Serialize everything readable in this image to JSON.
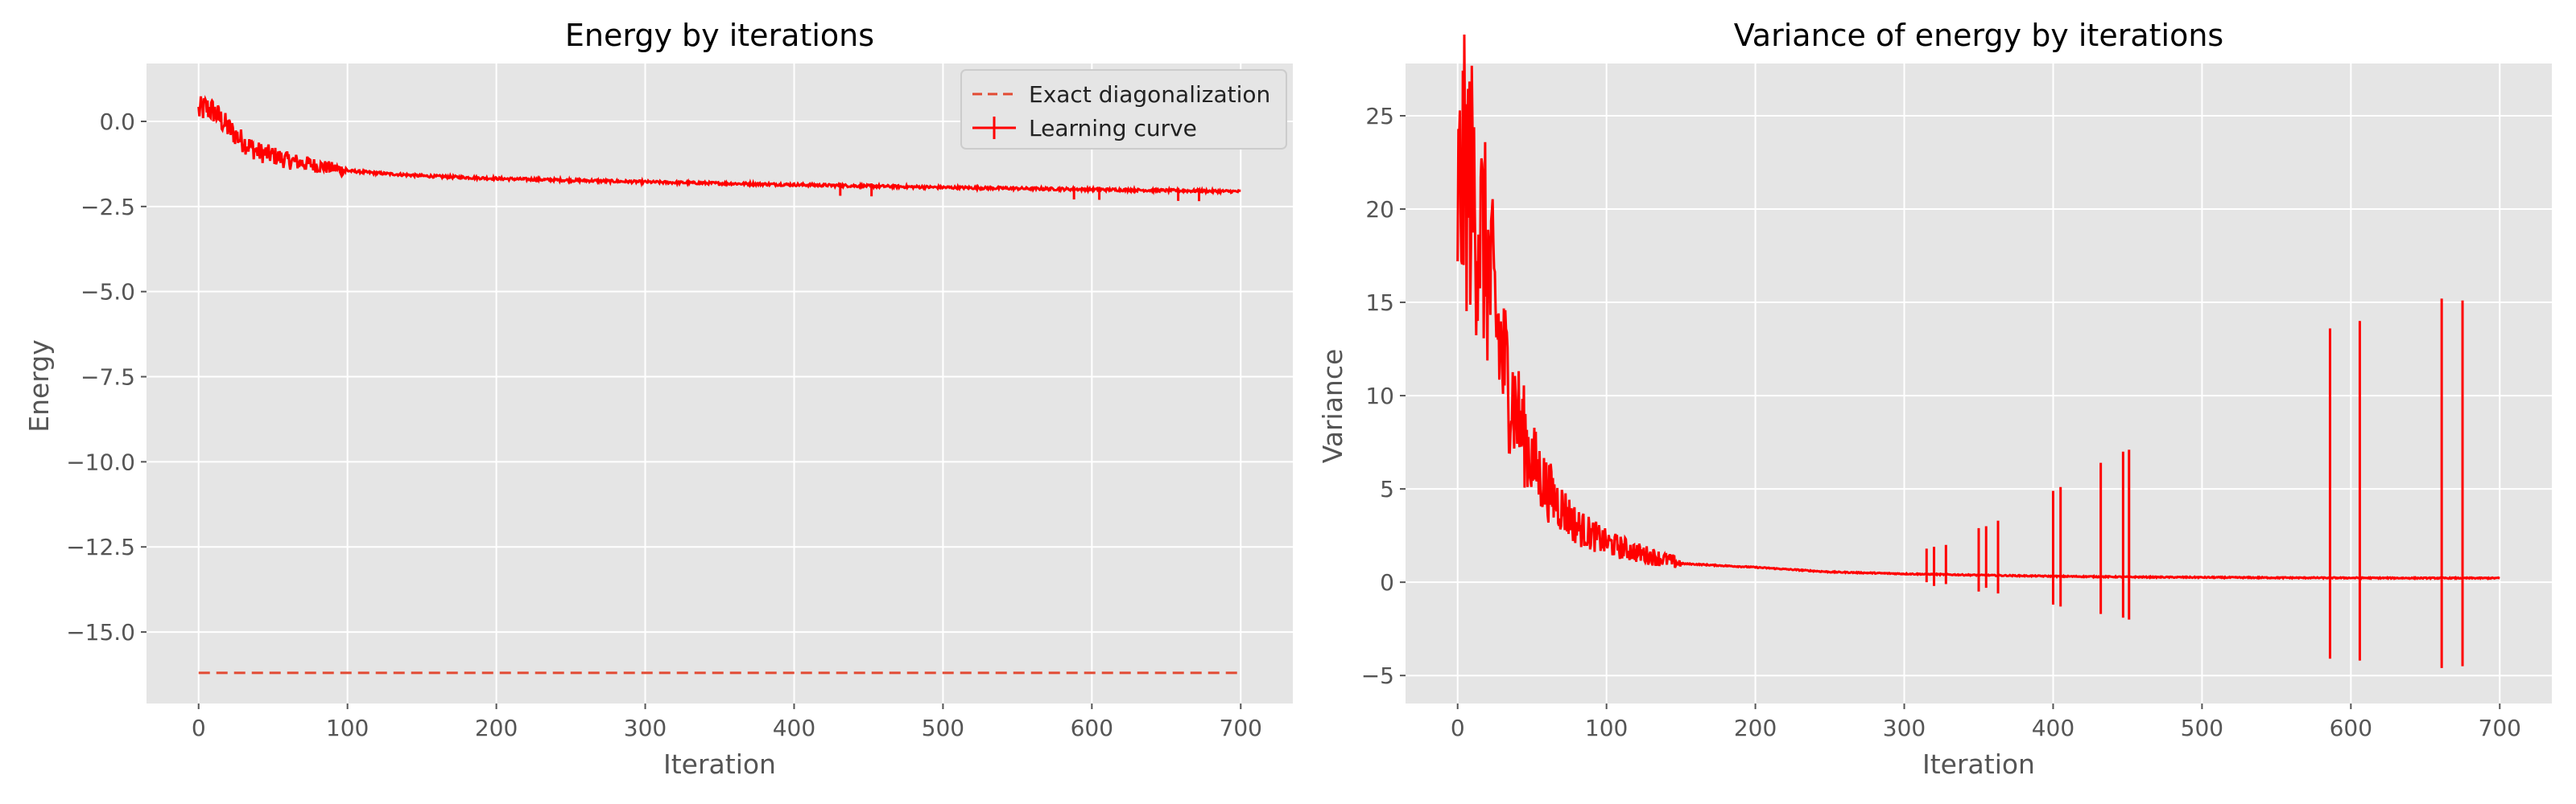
{
  "colors": {
    "plot_bg": "#e5e5e5",
    "grid": "#ffffff",
    "tick_text": "#555555",
    "label_text": "#555555",
    "title_text": "#000000",
    "curve": "#ff0000",
    "exact_line": "#e24a33",
    "legend_bg": "#e5e5e5",
    "legend_border": "#cccccc"
  },
  "chart_data": [
    {
      "type": "line",
      "title": "Energy by iterations",
      "xlabel": "Iteration",
      "ylabel": "Energy",
      "xlim": [
        -35,
        735
      ],
      "ylim": [
        -17.1,
        1.7
      ],
      "xticks": [
        0,
        100,
        200,
        300,
        400,
        500,
        600,
        700
      ],
      "xtick_labels": [
        "0",
        "100",
        "200",
        "300",
        "400",
        "500",
        "600",
        "700"
      ],
      "yticks": [
        0,
        -2.5,
        -5,
        -7.5,
        -10,
        -12.5,
        -15
      ],
      "ytick_labels": [
        "0.0",
        "−2.5",
        "−5.0",
        "−7.5",
        "−10.0",
        "−12.5",
        "−15.0"
      ],
      "grid": true,
      "legend": {
        "location": "upper right",
        "entries": [
          "Exact diagonalization",
          "Learning curve"
        ]
      },
      "series": [
        {
          "name": "Exact diagonalization",
          "style": "dashed",
          "x": [
            0,
            700
          ],
          "y": [
            -16.2,
            -16.2
          ]
        },
        {
          "name": "Learning curve",
          "style": "solid-errorbar",
          "x": [
            0,
            5,
            10,
            20,
            30,
            40,
            50,
            60,
            80,
            100,
            120,
            150,
            200,
            250,
            300,
            350,
            400,
            450,
            500,
            550,
            600,
            650,
            700
          ],
          "y": [
            0.3,
            0.4,
            0.3,
            -0.2,
            -0.6,
            -0.9,
            -1.0,
            -1.15,
            -1.3,
            -1.45,
            -1.52,
            -1.6,
            -1.68,
            -1.73,
            -1.78,
            -1.82,
            -1.86,
            -1.9,
            -1.94,
            -1.97,
            -2.0,
            -2.03,
            -2.06
          ]
        }
      ]
    },
    {
      "type": "line",
      "title": "Variance of energy by iterations",
      "xlabel": "Iteration",
      "ylabel": "Variance",
      "xlim": [
        -35,
        735
      ],
      "ylim": [
        -6.5,
        27.8
      ],
      "xticks": [
        0,
        100,
        200,
        300,
        400,
        500,
        600,
        700
      ],
      "xtick_labels": [
        "0",
        "100",
        "200",
        "300",
        "400",
        "500",
        "600",
        "700"
      ],
      "yticks": [
        25,
        20,
        15,
        10,
        5,
        0,
        -5
      ],
      "ytick_labels": [
        "25",
        "20",
        "15",
        "10",
        "5",
        "0",
        "−5"
      ],
      "grid": true,
      "series": [
        {
          "name": "Learning curve",
          "style": "solid-errorbar",
          "x": [
            0,
            5,
            10,
            15,
            20,
            30,
            40,
            50,
            60,
            80,
            100,
            120,
            150,
            200,
            250,
            300,
            350,
            400,
            450,
            500,
            550,
            600,
            650,
            700
          ],
          "y": [
            20,
            22,
            21,
            19,
            17,
            12,
            9,
            6.5,
            5,
            3,
            2.1,
            1.6,
            1.0,
            0.8,
            0.55,
            0.45,
            0.38,
            0.32,
            0.28,
            0.26,
            0.24,
            0.23,
            0.22,
            0.22
          ],
          "spikes": [
            {
              "x": 315,
              "low": 0,
              "high": 1.8
            },
            {
              "x": 320,
              "low": -0.2,
              "high": 1.9
            },
            {
              "x": 328,
              "low": -0.1,
              "high": 2.0
            },
            {
              "x": 350,
              "low": -0.5,
              "high": 2.9
            },
            {
              "x": 355,
              "low": -0.3,
              "high": 3.0
            },
            {
              "x": 363,
              "low": -0.6,
              "high": 3.3
            },
            {
              "x": 400,
              "low": -1.2,
              "high": 4.9
            },
            {
              "x": 405,
              "low": -1.3,
              "high": 5.1
            },
            {
              "x": 432,
              "low": -1.7,
              "high": 6.4
            },
            {
              "x": 447,
              "low": -1.9,
              "high": 7.0
            },
            {
              "x": 451,
              "low": -2.0,
              "high": 7.1
            },
            {
              "x": 586,
              "low": -4.1,
              "high": 13.6
            },
            {
              "x": 606,
              "low": -4.2,
              "high": 14.0
            },
            {
              "x": 661,
              "low": -4.6,
              "high": 15.2
            },
            {
              "x": 675,
              "low": -4.5,
              "high": 15.1
            }
          ]
        }
      ]
    }
  ]
}
